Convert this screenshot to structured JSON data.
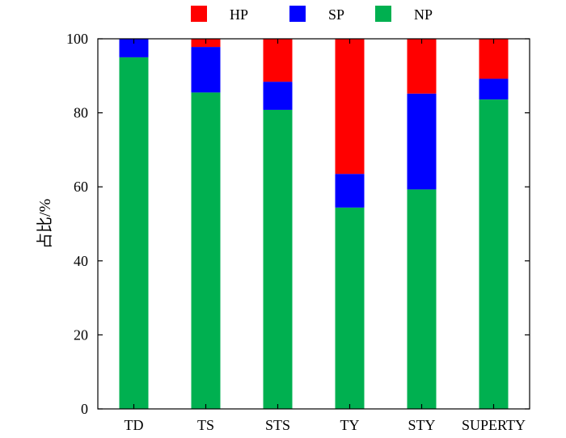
{
  "chart_data": {
    "type": "bar",
    "stacked": true,
    "categories": [
      "TD",
      "TS",
      "STS",
      "TY",
      "STY",
      "SUPERTY"
    ],
    "series": [
      {
        "name": "NP",
        "color": "#00b050",
        "values": [
          95.0,
          85.5,
          80.8,
          54.4,
          59.3,
          83.6
        ]
      },
      {
        "name": "SP",
        "color": "#0000ff",
        "values": [
          5.0,
          12.3,
          7.6,
          9.1,
          25.9,
          5.6
        ]
      },
      {
        "name": "HP",
        "color": "#ff0000",
        "values": [
          0.0,
          2.2,
          11.6,
          36.5,
          14.8,
          10.8
        ]
      }
    ],
    "legend_order": [
      "HP",
      "SP",
      "NP"
    ],
    "legend_position": "top",
    "ylabel": "占比/%",
    "xlabel": "",
    "ylim": [
      0,
      100
    ],
    "yticks": [
      0,
      20,
      40,
      60,
      80,
      100
    ],
    "grid": false
  }
}
